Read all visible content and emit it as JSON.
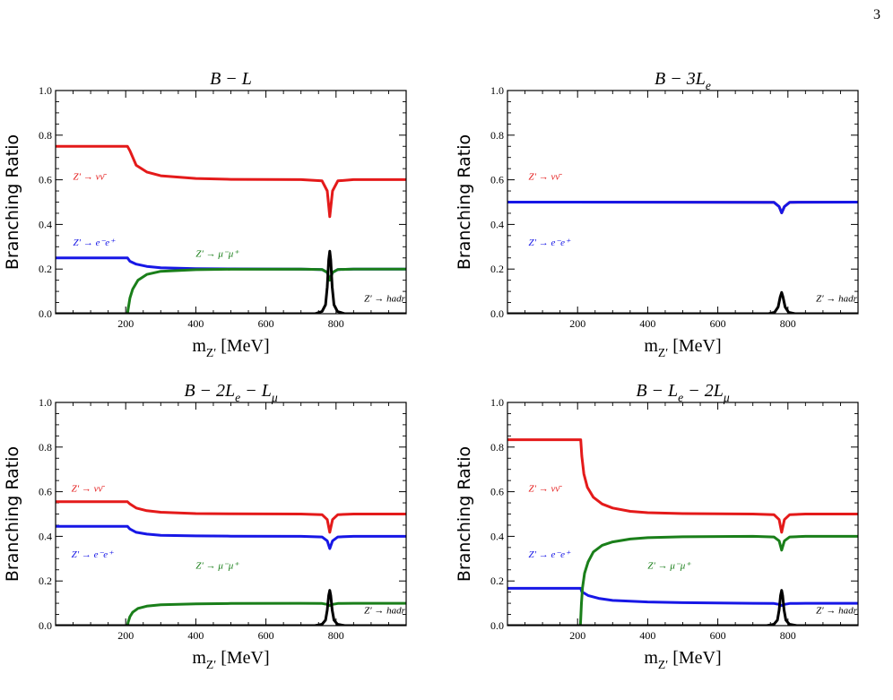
{
  "page": {
    "number": "3"
  },
  "chart_data": [
    {
      "type": "line",
      "title": "B − L",
      "xlabel": "m_{Z′} [MeV]",
      "ylabel": "Branching Ratio",
      "xlim": [
        0,
        1000
      ],
      "ylim": [
        0,
        1.0
      ],
      "xticks": [
        200,
        400,
        600,
        800
      ],
      "yticks": [
        0.0,
        0.2,
        0.4,
        0.6,
        0.8,
        1.0
      ],
      "series": [
        {
          "name": "Z′ → νν̄",
          "color": "#e41a1a",
          "x": [
            0,
            205,
            212,
            230,
            260,
            300,
            400,
            500,
            700,
            760,
            775,
            782,
            790,
            805,
            850,
            1000
          ],
          "y": [
            0.75,
            0.75,
            0.73,
            0.665,
            0.635,
            0.618,
            0.606,
            0.602,
            0.601,
            0.595,
            0.55,
            0.435,
            0.55,
            0.595,
            0.601,
            0.601
          ]
        },
        {
          "name": "Z′ → e⁻e⁺",
          "color": "#1717e6",
          "x": [
            0,
            205,
            212,
            230,
            260,
            300,
            400,
            500,
            700,
            760,
            775,
            782,
            790,
            805,
            850,
            1000
          ],
          "y": [
            0.25,
            0.25,
            0.235,
            0.222,
            0.212,
            0.206,
            0.202,
            0.201,
            0.2,
            0.198,
            0.185,
            0.15,
            0.185,
            0.198,
            0.2,
            0.2
          ]
        },
        {
          "name": "Z′ → μ⁻μ⁺",
          "color": "#1a7f1a",
          "x": [
            0,
            205,
            207,
            212,
            220,
            235,
            260,
            300,
            400,
            500,
            700,
            760,
            775,
            782,
            790,
            805,
            850,
            1000
          ],
          "y": [
            0,
            0,
            0.02,
            0.07,
            0.11,
            0.15,
            0.176,
            0.19,
            0.197,
            0.199,
            0.2,
            0.198,
            0.185,
            0.15,
            0.185,
            0.198,
            0.2,
            0.2
          ]
        },
        {
          "name": "Z′ → hadr",
          "color": "#000000",
          "x": [
            0,
            740,
            760,
            770,
            775,
            779,
            782,
            785,
            789,
            794,
            804,
            825,
            1000
          ],
          "y": [
            0,
            0,
            0.01,
            0.04,
            0.12,
            0.24,
            0.28,
            0.24,
            0.12,
            0.04,
            0.01,
            0,
            0
          ]
        }
      ],
      "annotations": [
        {
          "text": "Z′ → νν̄",
          "color": "#e41a1a",
          "x": 50,
          "y": 0.6
        },
        {
          "text": "Z′ → e⁻e⁺",
          "color": "#1717e6",
          "x": 50,
          "y": 0.305
        },
        {
          "text": "Z′ → μ⁻μ⁺",
          "color": "#1a7f1a",
          "x": 400,
          "y": 0.255
        },
        {
          "text": "Z′ → hadr",
          "color": "#000000",
          "x": 880,
          "y": 0.055
        }
      ]
    },
    {
      "type": "line",
      "title": "B − 3L_e",
      "xlabel": "m_{Z′} [MeV]",
      "ylabel": "Branching Ratio",
      "xlim": [
        0,
        1000
      ],
      "ylim": [
        0,
        1.0
      ],
      "xticks": [
        200,
        400,
        600,
        800
      ],
      "yticks": [
        0.0,
        0.2,
        0.4,
        0.6,
        0.8,
        1.0
      ],
      "series": [
        {
          "name": "Z′ → νν̄",
          "color": "#e41a1a",
          "x": [
            0,
            760,
            775,
            782,
            790,
            805,
            1000
          ],
          "y": [
            0.5,
            0.499,
            0.48,
            0.452,
            0.48,
            0.499,
            0.5
          ]
        },
        {
          "name": "Z′ → e⁻e⁺",
          "color": "#1717e6",
          "x": [
            0,
            760,
            775,
            782,
            790,
            805,
            1000
          ],
          "y": [
            0.5,
            0.499,
            0.48,
            0.452,
            0.48,
            0.499,
            0.5
          ]
        },
        {
          "name": "Z′ → hadr",
          "color": "#000000",
          "x": [
            0,
            745,
            762,
            772,
            778,
            782,
            786,
            792,
            802,
            820,
            1000
          ],
          "y": [
            0,
            0,
            0.006,
            0.03,
            0.075,
            0.095,
            0.075,
            0.03,
            0.006,
            0,
            0
          ]
        }
      ],
      "annotations": [
        {
          "text": "Z′ → νν̄",
          "color": "#e41a1a",
          "x": 60,
          "y": 0.6
        },
        {
          "text": "Z′ → e⁻e⁺",
          "color": "#1717e6",
          "x": 60,
          "y": 0.305
        },
        {
          "text": "Z′ → hadr",
          "color": "#000000",
          "x": 880,
          "y": 0.055
        }
      ]
    },
    {
      "type": "line",
      "title": "B − 2L_e − L_μ",
      "xlabel": "m_{Z′} [MeV]",
      "ylabel": "Branching Ratio",
      "xlim": [
        0,
        1000
      ],
      "ylim": [
        0,
        1.0
      ],
      "xticks": [
        200,
        400,
        600,
        800
      ],
      "yticks": [
        0.0,
        0.2,
        0.4,
        0.6,
        0.8,
        1.0
      ],
      "series": [
        {
          "name": "Z′ → νν̄",
          "color": "#e41a1a",
          "x": [
            0,
            205,
            212,
            230,
            260,
            300,
            400,
            500,
            700,
            760,
            775,
            782,
            790,
            805,
            850,
            1000
          ],
          "y": [
            0.555,
            0.555,
            0.545,
            0.527,
            0.515,
            0.508,
            0.502,
            0.501,
            0.5,
            0.497,
            0.475,
            0.418,
            0.475,
            0.497,
            0.5,
            0.5
          ]
        },
        {
          "name": "Z′ → e⁻e⁺",
          "color": "#1717e6",
          "x": [
            0,
            205,
            212,
            230,
            260,
            300,
            400,
            500,
            700,
            760,
            775,
            782,
            790,
            805,
            850,
            1000
          ],
          "y": [
            0.445,
            0.445,
            0.433,
            0.418,
            0.41,
            0.405,
            0.402,
            0.401,
            0.4,
            0.397,
            0.38,
            0.345,
            0.38,
            0.397,
            0.4,
            0.4
          ]
        },
        {
          "name": "Z′ → μ⁻μ⁺",
          "color": "#1a7f1a",
          "x": [
            0,
            205,
            207,
            212,
            220,
            235,
            260,
            300,
            400,
            500,
            700,
            760,
            775,
            782,
            790,
            805,
            850,
            1000
          ],
          "y": [
            0,
            0,
            0.015,
            0.04,
            0.06,
            0.077,
            0.087,
            0.093,
            0.097,
            0.099,
            0.1,
            0.099,
            0.095,
            0.09,
            0.095,
            0.099,
            0.1,
            0.1
          ]
        },
        {
          "name": "Z′ → hadr",
          "color": "#000000",
          "x": [
            0,
            740,
            760,
            770,
            775,
            779,
            782,
            785,
            789,
            794,
            804,
            825,
            1000
          ],
          "y": [
            0,
            0,
            0.006,
            0.025,
            0.07,
            0.135,
            0.158,
            0.135,
            0.07,
            0.025,
            0.006,
            0,
            0
          ]
        }
      ],
      "annotations": [
        {
          "text": "Z′ → νν̄",
          "color": "#e41a1a",
          "x": 45,
          "y": 0.6
        },
        {
          "text": "Z′ → e⁻e⁺",
          "color": "#1717e6",
          "x": 45,
          "y": 0.305
        },
        {
          "text": "Z′ → μ⁻μ⁺",
          "color": "#1a7f1a",
          "x": 400,
          "y": 0.255
        },
        {
          "text": "Z′ → hadr",
          "color": "#000000",
          "x": 880,
          "y": 0.055
        }
      ]
    },
    {
      "type": "line",
      "title": "B − L_e − 2L_μ",
      "xlabel": "m_{Z′} [MeV]",
      "ylabel": "Branching Ratio",
      "xlim": [
        0,
        1000
      ],
      "ylim": [
        0,
        1.0
      ],
      "xticks": [
        200,
        400,
        600,
        800
      ],
      "yticks": [
        0.0,
        0.2,
        0.4,
        0.6,
        0.8,
        1.0
      ],
      "series": [
        {
          "name": "Z′ → νν̄",
          "color": "#e41a1a",
          "x": [
            0,
            209,
            212,
            218,
            228,
            245,
            270,
            300,
            350,
            400,
            500,
            700,
            760,
            775,
            782,
            790,
            805,
            850,
            1000
          ],
          "y": [
            0.833,
            0.833,
            0.76,
            0.68,
            0.62,
            0.575,
            0.545,
            0.527,
            0.512,
            0.506,
            0.502,
            0.5,
            0.497,
            0.475,
            0.418,
            0.475,
            0.497,
            0.5,
            0.5
          ]
        },
        {
          "name": "Z′ → e⁻e⁺",
          "color": "#1717e6",
          "x": [
            0,
            209,
            212,
            230,
            260,
            300,
            400,
            500,
            700,
            760,
            775,
            782,
            790,
            805,
            850,
            1000
          ],
          "y": [
            0.167,
            0.167,
            0.152,
            0.135,
            0.122,
            0.113,
            0.106,
            0.103,
            0.1,
            0.099,
            0.095,
            0.09,
            0.095,
            0.099,
            0.1,
            0.1
          ]
        },
        {
          "name": "Z′ → μ⁻μ⁺",
          "color": "#1a7f1a",
          "x": [
            0,
            208,
            209,
            211,
            214,
            220,
            230,
            245,
            270,
            300,
            350,
            400,
            500,
            700,
            760,
            775,
            782,
            790,
            805,
            850,
            1000
          ],
          "y": [
            0,
            0,
            0.03,
            0.1,
            0.17,
            0.235,
            0.285,
            0.33,
            0.36,
            0.375,
            0.388,
            0.394,
            0.398,
            0.4,
            0.397,
            0.38,
            0.338,
            0.38,
            0.397,
            0.4,
            0.4
          ]
        },
        {
          "name": "Z′ → hadr",
          "color": "#000000",
          "x": [
            0,
            740,
            760,
            770,
            775,
            779,
            782,
            785,
            789,
            794,
            804,
            825,
            1000
          ],
          "y": [
            0,
            0,
            0.006,
            0.025,
            0.07,
            0.135,
            0.158,
            0.135,
            0.07,
            0.025,
            0.006,
            0,
            0
          ]
        }
      ],
      "annotations": [
        {
          "text": "Z′ → νν̄",
          "color": "#e41a1a",
          "x": 60,
          "y": 0.6
        },
        {
          "text": "Z′ → e⁻e⁺",
          "color": "#1717e6",
          "x": 60,
          "y": 0.305
        },
        {
          "text": "Z′ → μ⁻μ⁺",
          "color": "#1a7f1a",
          "x": 400,
          "y": 0.255
        },
        {
          "text": "Z′ → hadr",
          "color": "#000000",
          "x": 880,
          "y": 0.055
        }
      ]
    }
  ]
}
